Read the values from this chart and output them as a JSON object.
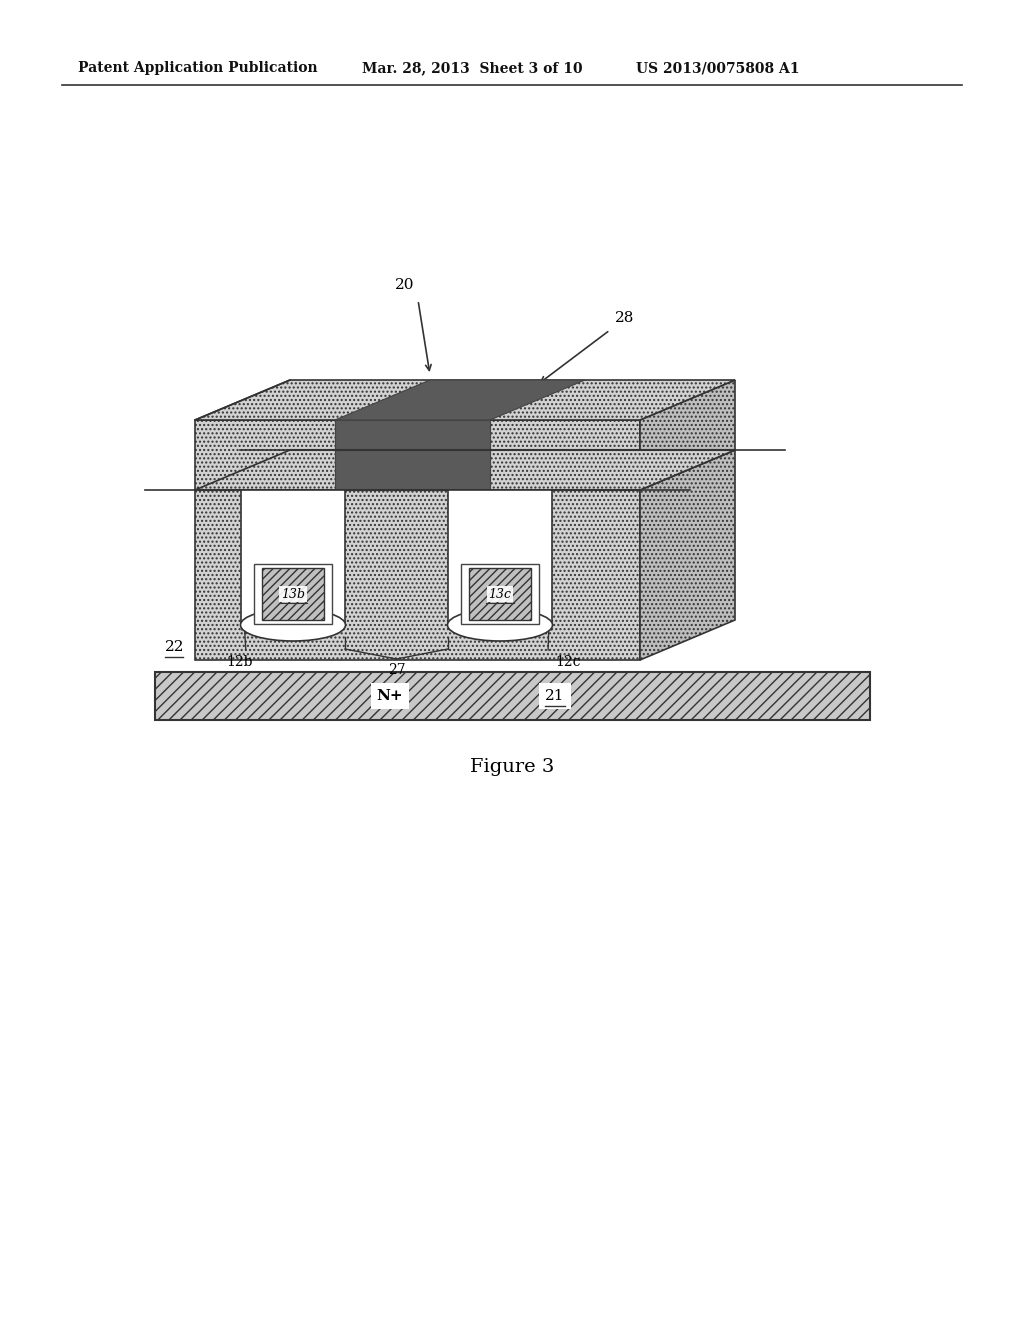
{
  "header_left": "Patent Application Publication",
  "header_mid": "Mar. 28, 2013  Sheet 3 of 10",
  "header_right": "US 2013/0075808 A1",
  "figure_label": "Figure 3",
  "bg_color": "#ffffff",
  "stipple_color": "#d2d2d2",
  "dark_strip_color": "#5a5a5a",
  "right_face_color": "#bebebe",
  "top_face_color": "#cccccc",
  "gate_hatch_color": "#c0c0c0",
  "nplus_color": "#c8c8c8",
  "label_20": "20",
  "label_28": "28",
  "label_22": "22",
  "label_21": "21",
  "label_27": "27",
  "label_12b": "12b",
  "label_12c": "12c",
  "label_13b": "13b",
  "label_13c": "13c",
  "label_Nplus": "N+"
}
